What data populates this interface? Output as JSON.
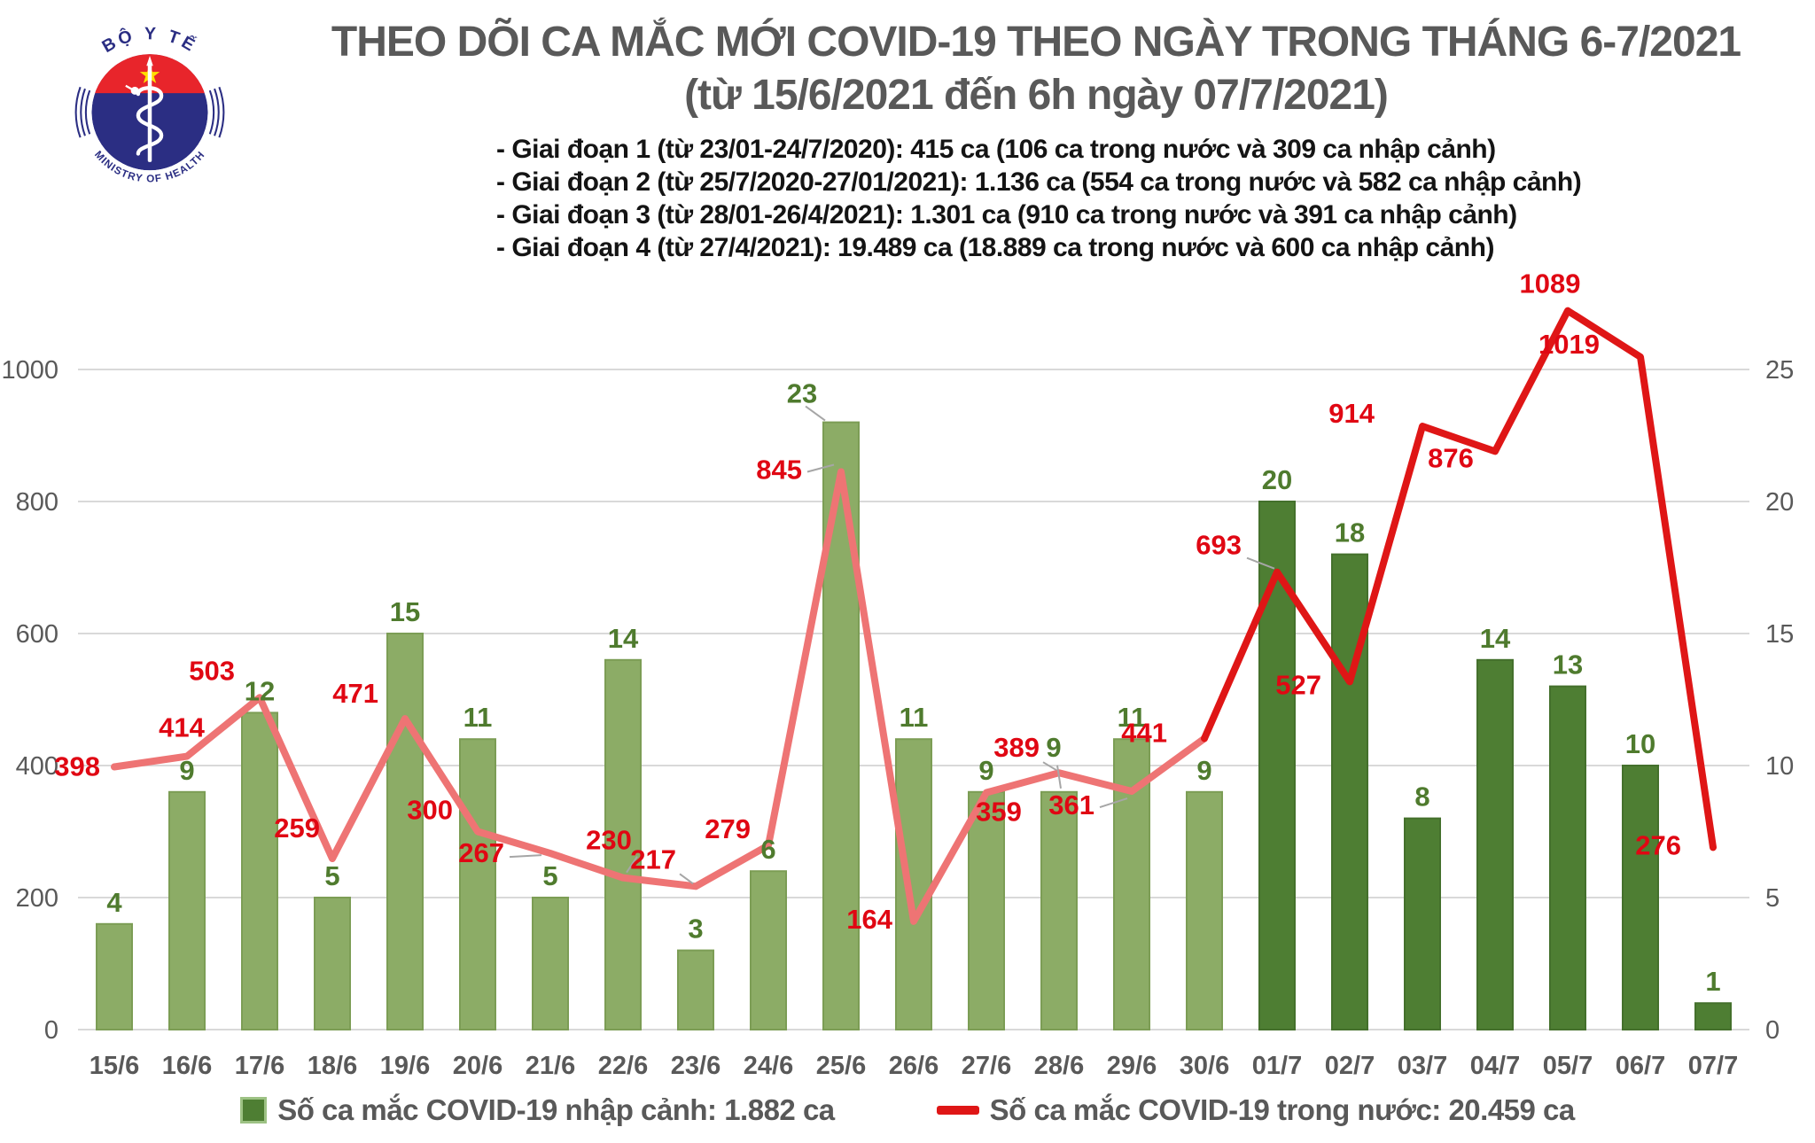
{
  "logo": {
    "top_text": "BỘ Y TẾ",
    "bottom_text": "MINISTRY OF HEALTH",
    "colors": {
      "blue": "#2B2E83",
      "red": "#E8252B",
      "star_yellow": "#FFDE00"
    }
  },
  "title": {
    "line1": "THEO DÕI CA MẮC MỚI COVID-19 THEO NGÀY TRONG THÁNG 6-7/2021",
    "line2": "(từ 15/6/2021 đến 6h ngày 07/7/2021)"
  },
  "phases": [
    "- Giai đoạn 1 (từ 23/01-24/7/2020): 415 ca (106 ca trong nước và 309 ca nhập cảnh)",
    "- Giai đoạn 2 (từ 25/7/2020-27/01/2021): 1.136 ca (554 ca trong nước và 582 ca nhập cảnh)",
    "- Giai đoạn 3 (từ 28/01-26/4/2021): 1.301 ca (910 ca trong nước và 391 ca nhập cảnh)",
    "- Giai đoạn 4 (từ 27/4/2021): 19.489 ca (18.889 ca trong nước và 600 ca nhập cảnh)"
  ],
  "chart_data": {
    "type": "combo",
    "categories": [
      "15/6",
      "16/6",
      "17/6",
      "18/6",
      "19/6",
      "20/6",
      "21/6",
      "22/6",
      "23/6",
      "24/6",
      "25/6",
      "26/6",
      "27/6",
      "28/6",
      "29/6",
      "30/6",
      "01/7",
      "02/7",
      "03/7",
      "04/7",
      "05/7",
      "06/7",
      "07/7"
    ],
    "series": [
      {
        "name": "Số ca mắc COVID-19 nhập cảnh",
        "type": "bar",
        "axis": "right",
        "values": [
          4,
          9,
          12,
          5,
          15,
          11,
          5,
          14,
          3,
          6,
          23,
          11,
          9,
          9,
          11,
          9,
          20,
          18,
          8,
          14,
          13,
          10,
          1
        ],
        "dark_from_index": 16
      },
      {
        "name": "Số ca mắc COVID-19 trong nước",
        "type": "line",
        "axis": "left",
        "values": [
          398,
          414,
          503,
          259,
          471,
          300,
          267,
          230,
          217,
          279,
          845,
          164,
          359,
          389,
          361,
          441,
          693,
          527,
          914,
          876,
          1089,
          1019,
          276
        ],
        "recent_from_index": 15
      }
    ],
    "left_axis": {
      "min": 0,
      "max": 1000,
      "step": 200,
      "ticks": [
        0,
        200,
        400,
        600,
        800,
        1000
      ]
    },
    "right_axis": {
      "min": 0,
      "max": 25,
      "step": 5,
      "ticks": [
        0,
        5,
        10,
        15,
        20,
        25
      ]
    },
    "grid": true,
    "legend_position": "bottom"
  },
  "legend": {
    "bar_label": "Số ca mắc COVID-19 nhập cảnh: 1.882 ca",
    "line_label": "Số ca mắc COVID-19 trong nước: 20.459 ca"
  },
  "colors": {
    "bar_light": "#8CAC66",
    "bar_light_stroke": "#7C9D55",
    "bar_dark": "#4E7E33",
    "bar_dark_stroke": "#44702C",
    "line_early": "#EE7474",
    "line_recent": "#DF1616",
    "bar_label": "#4F7B2E",
    "line_label": "#E00713",
    "axis_text": "#595959",
    "grid": "#D9D9D9",
    "leader": "#A6A6A6",
    "title_text": "#595959",
    "phase_text": "#141414"
  }
}
